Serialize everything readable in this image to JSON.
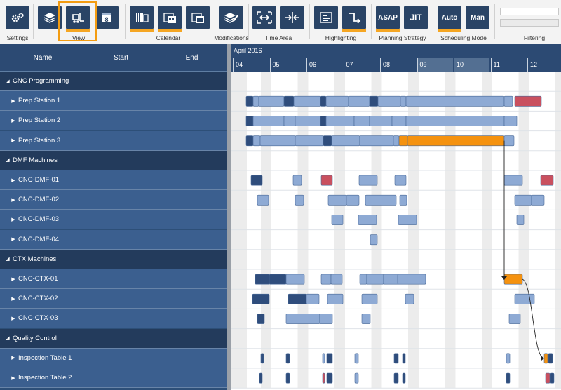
{
  "ribbon": {
    "groups": {
      "settings": "Settings",
      "view": "View",
      "calendar": "Calendar",
      "modifications": "Modifications",
      "time_area": "Time Area",
      "highlighting": "Highlighting",
      "planning_strategy": "Planning Strategy",
      "scheduling_mode": "Scheduling Mode",
      "filtering": "Filtering"
    },
    "buttons": {
      "asap": "ASAP",
      "jit": "JIT",
      "auto": "Auto",
      "man": "Man",
      "calendar_day": "8"
    },
    "accent_color": "#f39c12",
    "button_color": "#2a4466"
  },
  "grid": {
    "columns": {
      "name": "Name",
      "start": "Start",
      "end": "End"
    },
    "rows": [
      {
        "label": "CNC Programming",
        "type": "group"
      },
      {
        "label": "Prep Station 1",
        "type": "resource"
      },
      {
        "label": "Prep Station 2",
        "type": "resource"
      },
      {
        "label": "Prep Station 3",
        "type": "resource"
      },
      {
        "label": "DMF Machines",
        "type": "group"
      },
      {
        "label": "CNC-DMF-01",
        "type": "resource"
      },
      {
        "label": "CNC-DMF-02",
        "type": "resource"
      },
      {
        "label": "CNC-DMF-03",
        "type": "resource"
      },
      {
        "label": "CNC-DMF-04",
        "type": "resource"
      },
      {
        "label": "CTX Machines",
        "type": "group"
      },
      {
        "label": "CNC-CTX-01",
        "type": "resource"
      },
      {
        "label": "CNC-CTX-02",
        "type": "resource"
      },
      {
        "label": "CNC-CTX-03",
        "type": "resource"
      },
      {
        "label": "Quality Control",
        "type": "group"
      },
      {
        "label": "Inspection Table 1",
        "type": "resource"
      },
      {
        "label": "Inspection Table 2",
        "type": "resource"
      }
    ]
  },
  "timeline": {
    "month": "April 2016",
    "days": [
      "04",
      "05",
      "06",
      "07",
      "08",
      "09",
      "10",
      "11",
      "12"
    ],
    "highlighted_days": [
      "09",
      "10"
    ]
  },
  "colors": {
    "task": "#8eaad4",
    "task_dark": "#2f4d7c",
    "critical": "#c9505f",
    "selected": "#f5920f",
    "nonwork": "#ececec"
  }
}
